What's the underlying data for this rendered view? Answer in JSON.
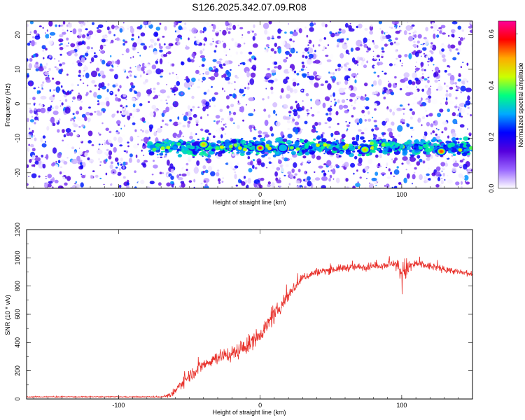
{
  "title": "S126.2025.342.07.09.R08",
  "chart_data": [
    {
      "type": "heatmap",
      "title": "S126.2025.342.07.09.R08",
      "xlabel": "Height of straight line (km)",
      "ylabel": "Frequency (Hz)",
      "xlim": [
        -165,
        150
      ],
      "ylim": [
        -24.5,
        24
      ],
      "xticks": [
        "-100",
        "0",
        "100"
      ],
      "yticks": [
        "-20",
        "-10",
        "0",
        "10",
        "20"
      ],
      "colorbar": {
        "label": "Normalized spectral amplitude",
        "range": [
          0.0,
          0.65
        ],
        "ticks": [
          "0.0",
          "0.2",
          "0.4",
          "0.6"
        ],
        "colormap": "rainbow",
        "colors": [
          "#ffffff",
          "#9966ff",
          "#5500dd",
          "#0000ff",
          "#00aaff",
          "#00ff80",
          "#ccff00",
          "#ffaa00",
          "#ff0000",
          "#ff0099"
        ]
      },
      "band": {
        "frequency_hz": -12.5,
        "strong_peaks": [
          {
            "x": -40,
            "y": -11.8,
            "value": 0.5
          },
          {
            "x": 0,
            "y": -12.8,
            "value": 0.62
          },
          {
            "x": 16,
            "y": -12.8,
            "value": 0.3
          },
          {
            "x": 74,
            "y": -13.3,
            "value": 0.5
          },
          {
            "x": 128,
            "y": -13.8,
            "value": 0.55
          }
        ]
      },
      "grid": false
    },
    {
      "type": "line",
      "xlabel": "Height of straight line (km)",
      "ylabel": "SNR (10 * v/v)",
      "xlim": [
        -165,
        150
      ],
      "ylim": [
        0,
        1200
      ],
      "xticks": [
        "-100",
        "0",
        "100"
      ],
      "yticks": [
        "0",
        "200",
        "400",
        "600",
        "800",
        "1000",
        "1200"
      ],
      "color": "#e8312b",
      "series": [
        {
          "x": [
            -165,
            -100,
            -70,
            -62,
            -55,
            -45,
            -30,
            -20,
            -10,
            0,
            10,
            20,
            30,
            40,
            60,
            80,
            95,
            100,
            110,
            130,
            150
          ],
          "values": [
            15,
            15,
            15,
            30,
            120,
            210,
            300,
            320,
            370,
            460,
            590,
            740,
            860,
            900,
            930,
            940,
            960,
            900,
            960,
            920,
            880
          ],
          "noise": [
            4,
            4,
            4,
            25,
            55,
            60,
            65,
            70,
            80,
            70,
            70,
            60,
            40,
            35,
            35,
            35,
            35,
            130,
            40,
            30,
            30
          ]
        }
      ]
    }
  ]
}
